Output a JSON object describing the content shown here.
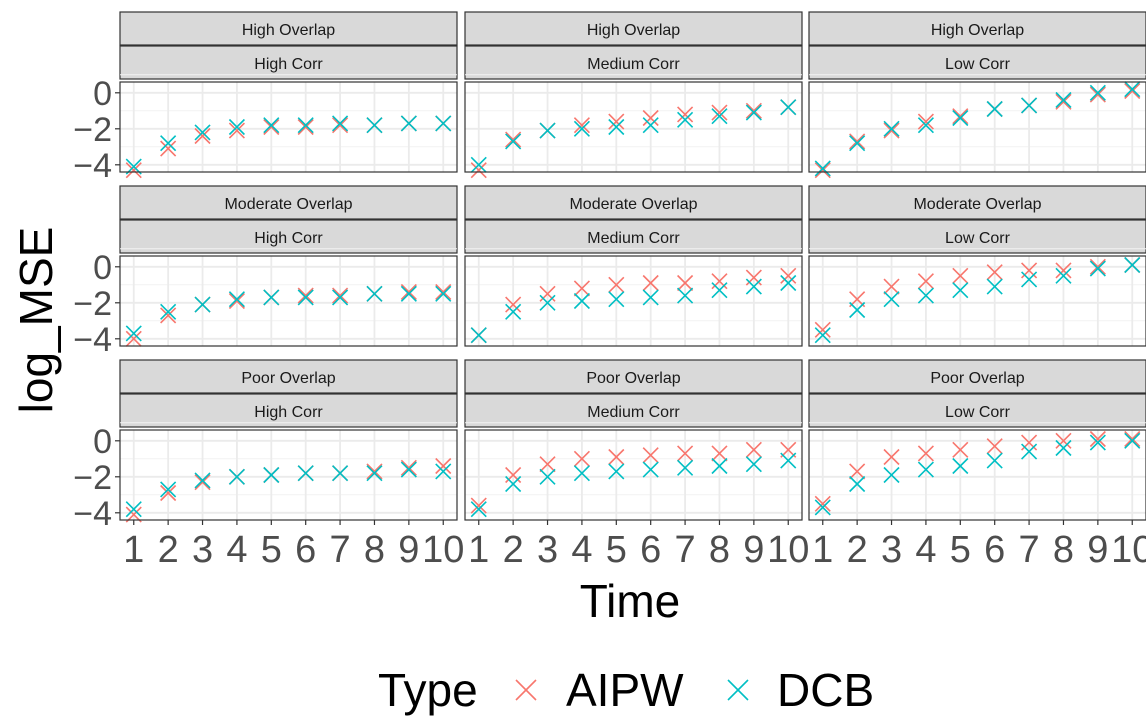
{
  "chart_data": {
    "type": "scatter",
    "facet_grid": true,
    "row_labels": [
      "High Overlap",
      "Moderate Overlap",
      "Poor Overlap"
    ],
    "col_labels": [
      "High Corr",
      "Medium Corr",
      "Low Corr"
    ],
    "xlabel": "Time",
    "ylabel": "log_MSE",
    "x": [
      1,
      2,
      3,
      4,
      5,
      6,
      7,
      8,
      9,
      10
    ],
    "xticks": [
      "1",
      "2",
      "3",
      "4",
      "5",
      "6",
      "7",
      "8",
      "9",
      "10"
    ],
    "yticks": [
      0,
      -2,
      -4
    ],
    "ylim": [
      -4.4,
      0.6
    ],
    "legend": {
      "title": "Type",
      "position": "bottom",
      "entries": [
        "AIPW",
        "DCB"
      ]
    },
    "colors": {
      "AIPW": "#F8766D",
      "DCB": "#00BFC4"
    },
    "panels": [
      {
        "row": 0,
        "col": 0,
        "series": [
          {
            "name": "AIPW",
            "values": [
              -4.3,
              -3.1,
              -2.4,
              -2.1,
              -1.9,
              -1.9,
              -1.8,
              -1.8,
              -1.7,
              -1.7
            ]
          },
          {
            "name": "DCB",
            "values": [
              -4.1,
              -2.8,
              -2.2,
              -1.9,
              -1.8,
              -1.8,
              -1.7,
              -1.8,
              -1.7,
              -1.7
            ]
          }
        ]
      },
      {
        "row": 0,
        "col": 1,
        "series": [
          {
            "name": "AIPW",
            "values": [
              -4.3,
              -2.6,
              -2.1,
              -1.8,
              -1.6,
              -1.4,
              -1.2,
              -1.1,
              -1.0,
              -0.8
            ]
          },
          {
            "name": "DCB",
            "values": [
              -4.0,
              -2.7,
              -2.1,
              -2.0,
              -1.9,
              -1.8,
              -1.5,
              -1.3,
              -1.1,
              -0.8
            ]
          }
        ]
      },
      {
        "row": 0,
        "col": 2,
        "series": [
          {
            "name": "AIPW",
            "values": [
              -4.3,
              -2.7,
              -2.1,
              -1.6,
              -1.3,
              -0.9,
              -0.7,
              -0.5,
              -0.1,
              0.1
            ]
          },
          {
            "name": "DCB",
            "values": [
              -4.2,
              -2.8,
              -2.0,
              -1.8,
              -1.4,
              -0.9,
              -0.7,
              -0.4,
              0.0,
              0.2
            ]
          }
        ]
      },
      {
        "row": 1,
        "col": 0,
        "series": [
          {
            "name": "AIPW",
            "values": [
              -4.0,
              -2.7,
              -2.1,
              -1.9,
              -1.7,
              -1.6,
              -1.6,
              -1.5,
              -1.4,
              -1.4
            ]
          },
          {
            "name": "DCB",
            "values": [
              -3.7,
              -2.5,
              -2.1,
              -1.8,
              -1.7,
              -1.7,
              -1.7,
              -1.5,
              -1.5,
              -1.5
            ]
          }
        ]
      },
      {
        "row": 1,
        "col": 1,
        "series": [
          {
            "name": "AIPW",
            "values": [
              -3.8,
              -2.1,
              -1.5,
              -1.2,
              -1.0,
              -0.9,
              -0.9,
              -0.8,
              -0.6,
              -0.5
            ]
          },
          {
            "name": "DCB",
            "values": [
              -3.8,
              -2.5,
              -2.0,
              -1.9,
              -1.8,
              -1.7,
              -1.6,
              -1.3,
              -1.1,
              -0.9
            ]
          }
        ]
      },
      {
        "row": 1,
        "col": 2,
        "series": [
          {
            "name": "AIPW",
            "values": [
              -3.5,
              -1.8,
              -1.1,
              -0.8,
              -0.5,
              -0.3,
              -0.2,
              -0.2,
              0.0,
              0.1
            ]
          },
          {
            "name": "DCB",
            "values": [
              -3.8,
              -2.4,
              -1.8,
              -1.6,
              -1.3,
              -1.1,
              -0.7,
              -0.5,
              -0.1,
              0.1
            ]
          }
        ]
      },
      {
        "row": 2,
        "col": 0,
        "series": [
          {
            "name": "AIPW",
            "values": [
              -4.1,
              -2.9,
              -2.3,
              -2.0,
              -1.9,
              -1.8,
              -1.8,
              -1.7,
              -1.5,
              -1.4
            ]
          },
          {
            "name": "DCB",
            "values": [
              -3.8,
              -2.7,
              -2.2,
              -2.0,
              -1.9,
              -1.8,
              -1.8,
              -1.8,
              -1.6,
              -1.7
            ]
          }
        ]
      },
      {
        "row": 2,
        "col": 1,
        "series": [
          {
            "name": "AIPW",
            "values": [
              -3.6,
              -1.9,
              -1.3,
              -1.0,
              -0.9,
              -0.8,
              -0.7,
              -0.7,
              -0.5,
              -0.5
            ]
          },
          {
            "name": "DCB",
            "values": [
              -3.8,
              -2.4,
              -2.0,
              -1.8,
              -1.7,
              -1.6,
              -1.5,
              -1.4,
              -1.3,
              -1.1
            ]
          }
        ]
      },
      {
        "row": 2,
        "col": 2,
        "series": [
          {
            "name": "AIPW",
            "values": [
              -3.5,
              -1.7,
              -0.9,
              -0.7,
              -0.5,
              -0.3,
              -0.1,
              0.0,
              0.1,
              0.1
            ]
          },
          {
            "name": "DCB",
            "values": [
              -3.7,
              -2.4,
              -1.9,
              -1.6,
              -1.4,
              -1.1,
              -0.6,
              -0.4,
              -0.1,
              0.0
            ]
          }
        ]
      }
    ]
  }
}
